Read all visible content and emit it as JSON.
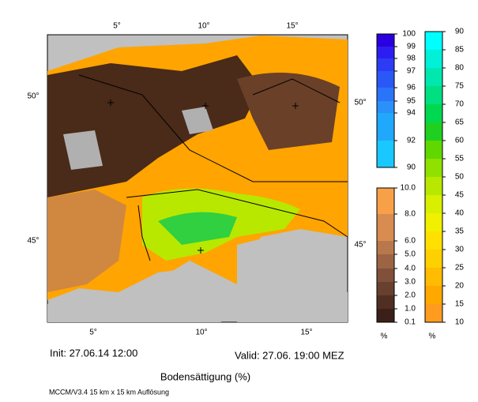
{
  "map": {
    "lon_top": [
      "5°",
      "10°",
      "15°"
    ],
    "lon_bottom": [
      "5°",
      "10°",
      "15°"
    ],
    "lat_left": [
      "50°",
      "45°"
    ],
    "lat_right": [
      "50°",
      "45°"
    ]
  },
  "colorbars": [
    {
      "labels": [
        "100",
        "99",
        "98",
        "97",
        "96",
        "95",
        "94",
        "92",
        "90"
      ],
      "colors": [
        "#2a00e0",
        "#2c1ef0",
        "#2c3cf4",
        "#2a58f6",
        "#2a74f8",
        "#2a90fa",
        "#20a8fc",
        "#18c8ff"
      ],
      "unit": ""
    },
    {
      "labels": [
        "90",
        "85",
        "80",
        "75",
        "70",
        "65",
        "60",
        "55",
        "50",
        "45",
        "40",
        "35",
        "30",
        "25",
        "20",
        "15",
        "10"
      ],
      "colors": [
        "#00ffff",
        "#00f0d8",
        "#00e8b0",
        "#00e080",
        "#00d850",
        "#20d020",
        "#60d800",
        "#90e000",
        "#b8e800",
        "#d8f000",
        "#f0f000",
        "#ffe000",
        "#ffd000",
        "#ffbc00",
        "#ffa800",
        "#ff9c20"
      ],
      "unit": "%"
    },
    {
      "labels": [
        "10.0",
        "8.0",
        "6.0",
        "5.0",
        "4.0",
        "3.0",
        "2.0",
        "1.0",
        "0.1"
      ],
      "colors": [
        "#f8a048",
        "#d88c50",
        "#b8784c",
        "#9c6444",
        "#80503a",
        "#684030",
        "#502e22",
        "#3a2018"
      ],
      "unit": "%"
    }
  ],
  "footer": {
    "init": "Init: 27.06.14 12:00",
    "valid": "Valid: 27.06. 19:00 MEZ",
    "title": "Bodensättigung (%)",
    "model": "MCCM/V3.4 15 km x 15 km Auflösung"
  }
}
